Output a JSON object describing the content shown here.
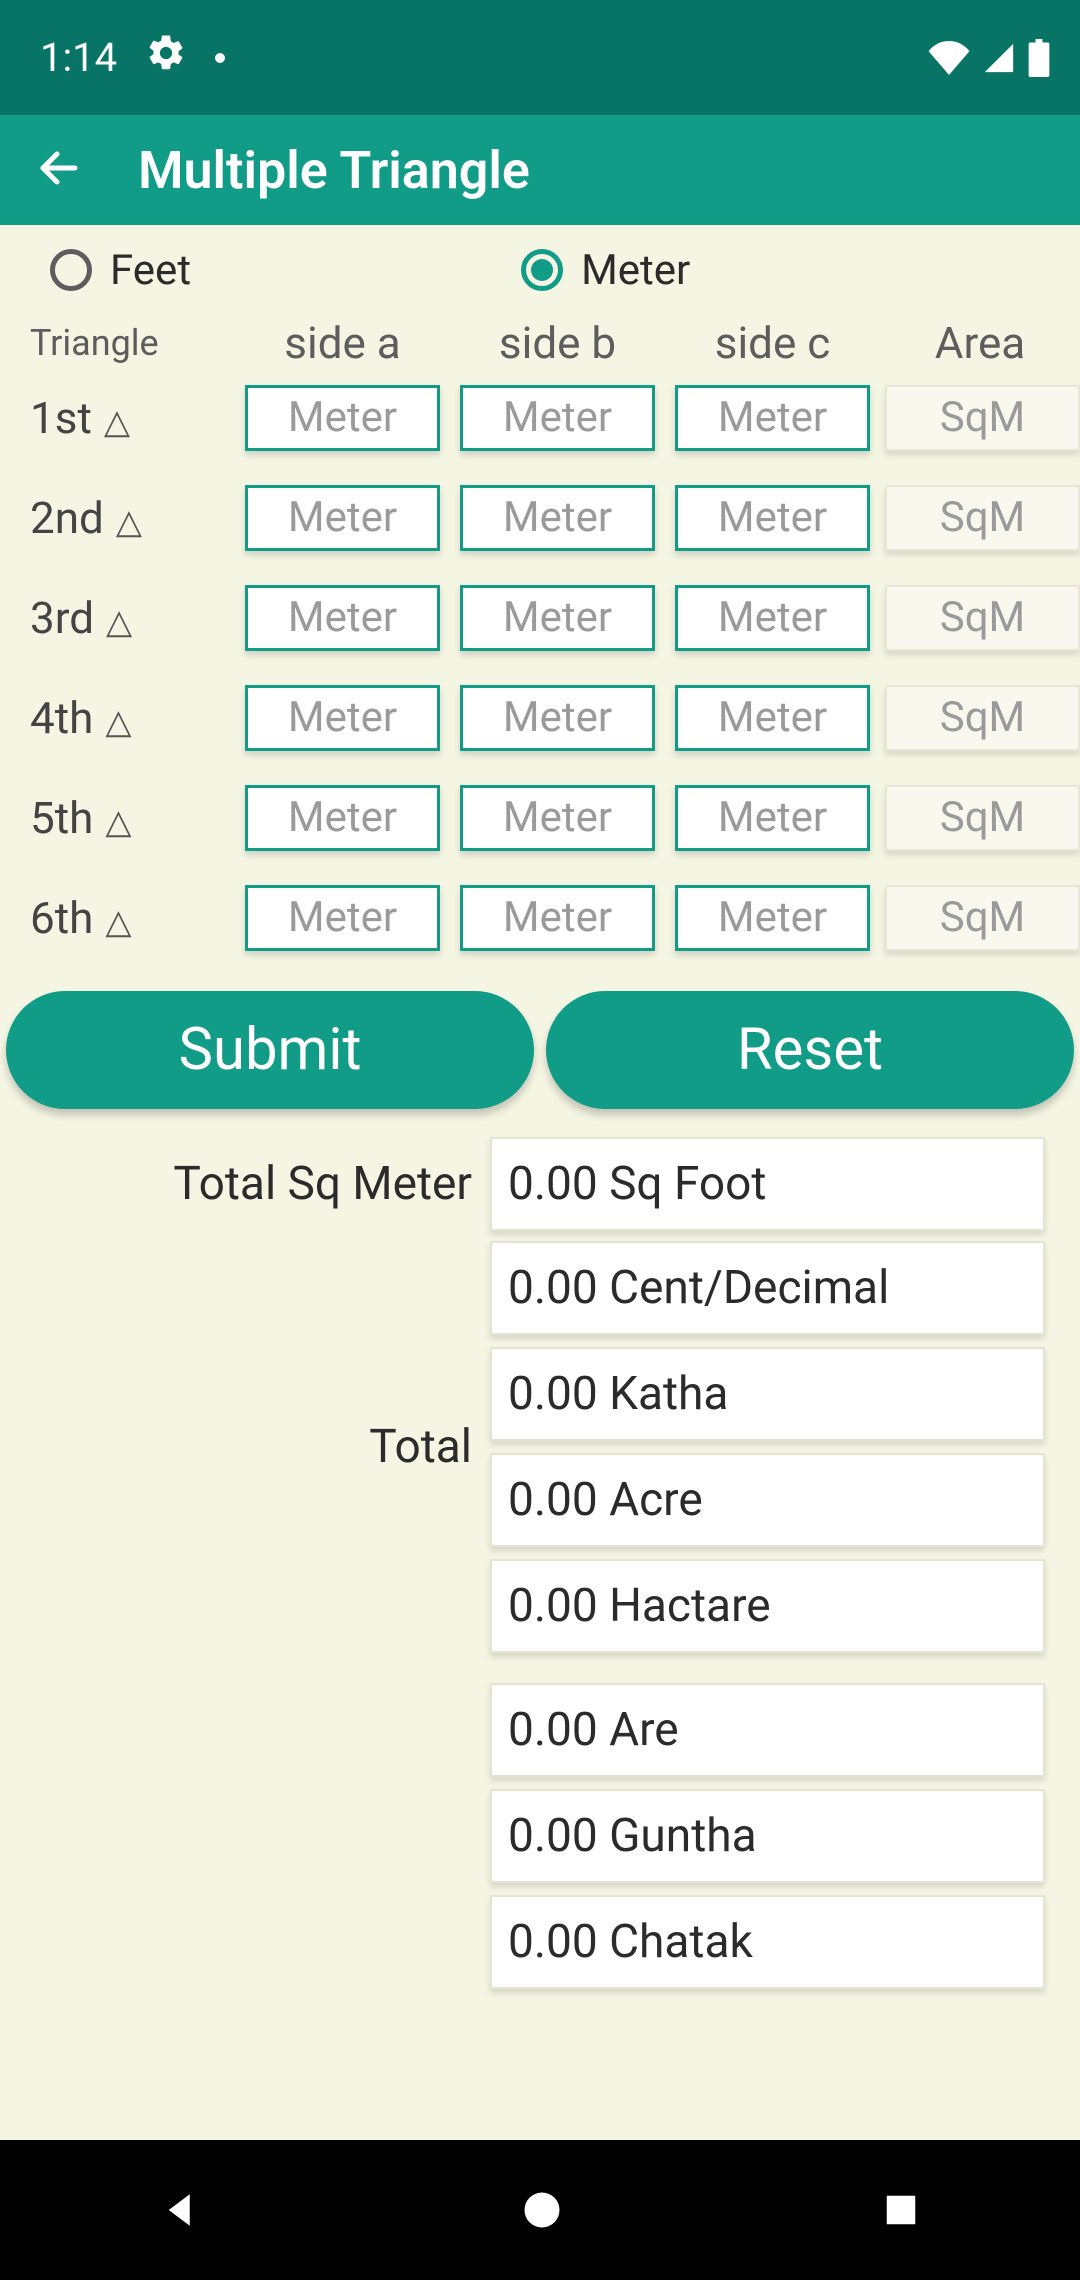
{
  "status": {
    "time": "1:14"
  },
  "appbar": {
    "title": "Multiple Triangle"
  },
  "units": {
    "feet_label": "Feet",
    "meter_label": "Meter",
    "selected": "meter"
  },
  "headers": {
    "triangle": "Triangle",
    "side_a": "side a",
    "side_b": "side b",
    "side_c": "side c",
    "area": "Area"
  },
  "input_placeholder": "Meter",
  "area_placeholder": "SqM",
  "rows": [
    {
      "label": "1st"
    },
    {
      "label": "2nd"
    },
    {
      "label": "3rd"
    },
    {
      "label": "4th"
    },
    {
      "label": "5th"
    },
    {
      "label": "6th"
    }
  ],
  "buttons": {
    "submit": "Submit",
    "reset": "Reset"
  },
  "totals": {
    "sqmeter_label": "Total Sq Meter",
    "total_label": "Total"
  },
  "results_group1": [
    "0.00 Sq Foot"
  ],
  "results_group2": [
    "0.00 Cent/Decimal",
    "0.00 Katha",
    "0.00 Acre",
    "0.00 Hactare"
  ],
  "results_group3": [
    "0.00 Are",
    "0.00 Guntha",
    "0.00 Chatak"
  ],
  "colors": {
    "primary": "#119c88",
    "primary_dark": "#087466",
    "background": "#f5f5e3"
  }
}
